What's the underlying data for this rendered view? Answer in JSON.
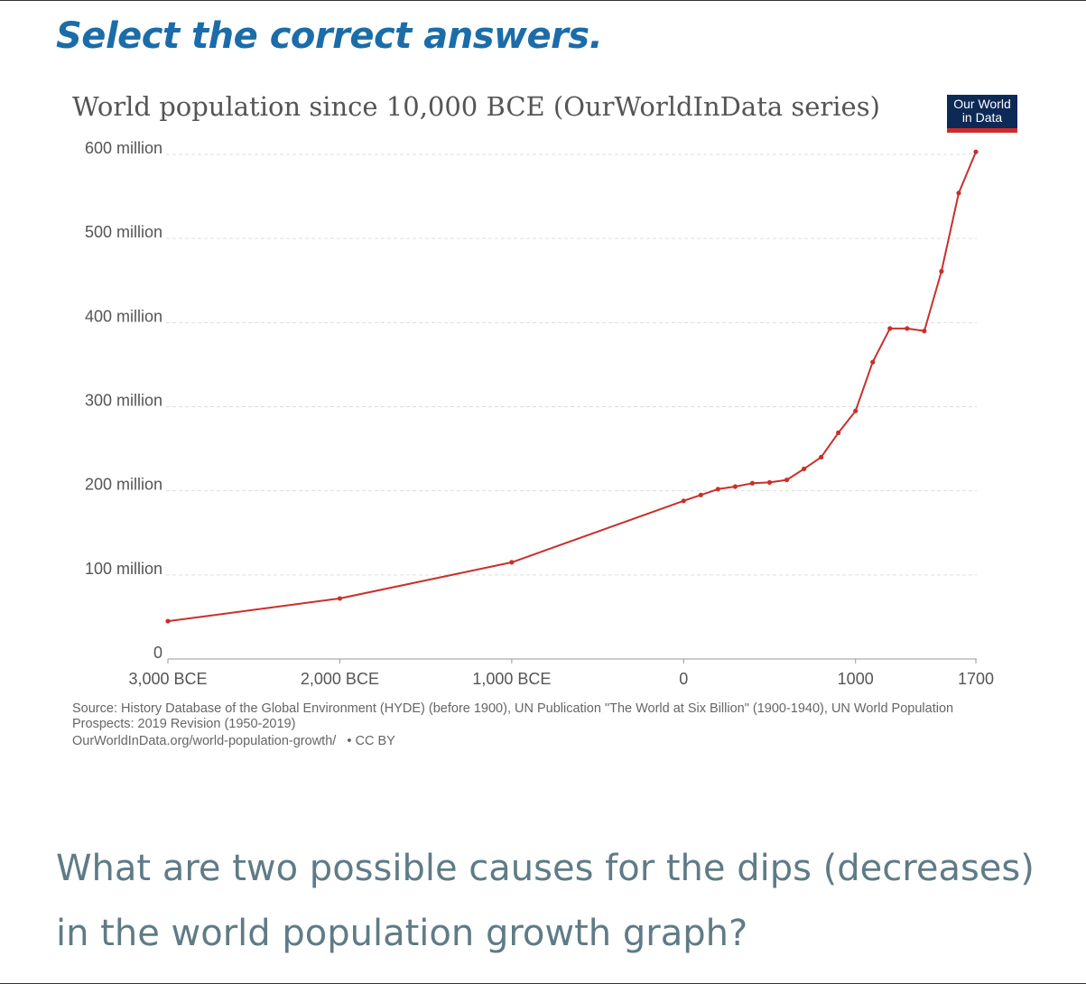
{
  "instruction": "Select the correct answers.",
  "logo": {
    "line1": "Our World",
    "line2": "in Data"
  },
  "source": {
    "text": "Source: History Database of the Global Environment (HYDE) (before 1900), UN Publication \"The World at Six Billion\" (1900-1940), UN World Population Prospects: 2019 Revision (1950-2019)",
    "url": "OurWorldInData.org/world-population-growth/",
    "license": "• CC BY"
  },
  "question": "What are two possible causes for the dips (decreases) in the world population growth graph?",
  "colors": {
    "line": "#c9302c",
    "instruction": "#1a6da8",
    "question": "#5f7b86",
    "grid": "#dddddd"
  },
  "chart_data": {
    "type": "line",
    "title": "World population since 10,000 BCE (OurWorldInData series)",
    "xlabel": "",
    "ylabel": "",
    "grid": true,
    "xlim": [
      -3000,
      1700
    ],
    "ylim": [
      0,
      600000000
    ],
    "x_ticks": [
      {
        "value": -3000,
        "label": "3,000 BCE"
      },
      {
        "value": -2000,
        "label": "2,000 BCE"
      },
      {
        "value": -1000,
        "label": "1,000 BCE"
      },
      {
        "value": 0,
        "label": "0"
      },
      {
        "value": 1000,
        "label": "1000"
      },
      {
        "value": 1700,
        "label": "1700"
      }
    ],
    "y_ticks": [
      {
        "value": 0,
        "label": "0"
      },
      {
        "value": 100000000,
        "label": "100 million"
      },
      {
        "value": 200000000,
        "label": "200 million"
      },
      {
        "value": 300000000,
        "label": "300 million"
      },
      {
        "value": 400000000,
        "label": "400 million"
      },
      {
        "value": 500000000,
        "label": "500 million"
      },
      {
        "value": 600000000,
        "label": "600 million"
      }
    ],
    "series": [
      {
        "x": [
          -3000,
          -2000,
          -1000,
          0,
          100,
          200,
          300,
          400,
          500,
          600,
          700,
          800,
          900,
          1000,
          1100,
          1200,
          1300,
          1400,
          1500,
          1600,
          1700
        ],
        "values": [
          45000000,
          72000000,
          115000000,
          188000000,
          195000000,
          202000000,
          205000000,
          209000000,
          210000000,
          213000000,
          226000000,
          240000000,
          269000000,
          295000000,
          353000000,
          393000000,
          393000000,
          390000000,
          461000000,
          554000000,
          603000000
        ]
      }
    ]
  }
}
